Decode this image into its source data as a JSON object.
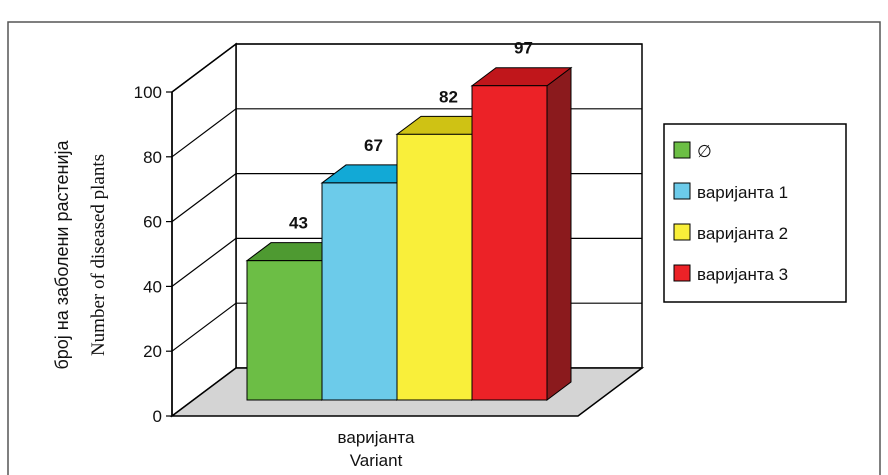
{
  "chart_data": {
    "type": "bar",
    "categories": [
      "∅",
      "варијанта 1",
      "варијанта 2",
      "варијанта 3"
    ],
    "values": [
      43,
      67,
      82,
      97
    ],
    "data_labels": [
      "43",
      "67",
      "82",
      "97"
    ],
    "title": "",
    "xlabel": [
      "варијанта",
      "Variant"
    ],
    "ylabel": [
      "број на заболени растенија",
      "Number of diseased plants"
    ],
    "ylim": [
      0,
      100
    ],
    "yticks": [
      0,
      20,
      40,
      60,
      80,
      100
    ],
    "legend": {
      "placement": "right",
      "entries": [
        "∅",
        "варијанта 1",
        "варијанта 2",
        "варијанта 3"
      ]
    },
    "grid": true,
    "three_d": true,
    "colors": {
      "front": [
        "#6cbe45",
        "#6ccbea",
        "#f9ef3a",
        "#ec2227"
      ],
      "top": [
        "#4e9a31",
        "#12a9d6",
        "#cfc214",
        "#c0161b"
      ],
      "side": [
        "#3f7c27",
        "#0d86aa",
        "#a99f10",
        "#8b1a1d"
      ]
    }
  }
}
